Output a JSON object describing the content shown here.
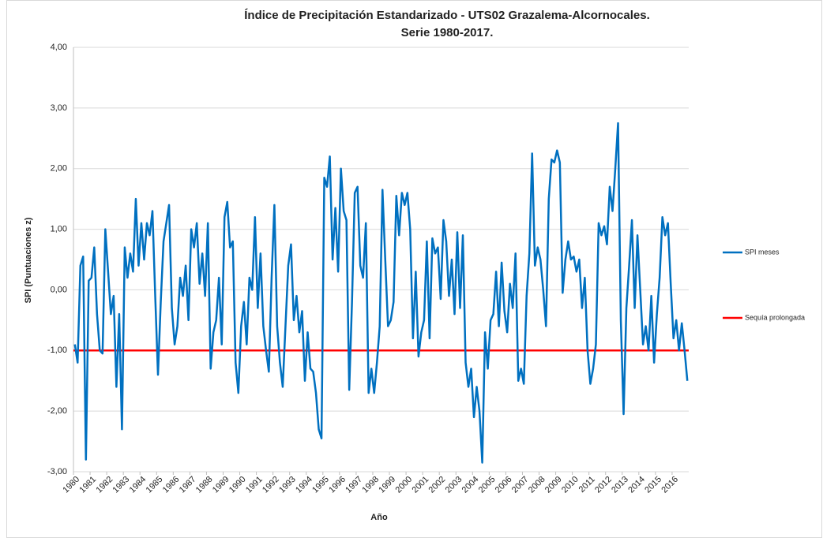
{
  "chart_data": {
    "type": "line",
    "title": [
      "Índice de Precipitación Estandarizado - UTS02 Grazalema-Alcornocales.",
      "Serie 1980-2017."
    ],
    "xlabel": "Año",
    "ylabel": "SPI (Puntuaciones z)",
    "categories": [
      "1980",
      null,
      null,
      null,
      null,
      null,
      "1981",
      null,
      null,
      null,
      null,
      null,
      "1982",
      null,
      null,
      null,
      null,
      null,
      "1983",
      null,
      null,
      null,
      null,
      null,
      "1984",
      null,
      null,
      null,
      null,
      null,
      "1985",
      null,
      null,
      null,
      null,
      null,
      "1986",
      null,
      null,
      null,
      null,
      null,
      "1987",
      null,
      null,
      null,
      null,
      null,
      "1988",
      null,
      null,
      null,
      null,
      null,
      "1989",
      null,
      null,
      null,
      null,
      null,
      "1990",
      null,
      null,
      null,
      null,
      null,
      "1991",
      null,
      null,
      null,
      null,
      null,
      "1992",
      null,
      null,
      null,
      null,
      null,
      "1993",
      null,
      null,
      null,
      null,
      null,
      "1994",
      null,
      null,
      null,
      null,
      null,
      "1995",
      null,
      null,
      null,
      null,
      null,
      "1996",
      null,
      null,
      null,
      null,
      null,
      "1997",
      null,
      null,
      null,
      null,
      null,
      "1998",
      null,
      null,
      null,
      null,
      null,
      "1999",
      null,
      null,
      null,
      null,
      null,
      "2000",
      null,
      null,
      null,
      null,
      null,
      "2001",
      null,
      null,
      null,
      null,
      null,
      "2002",
      null,
      null,
      null,
      null,
      null,
      "2003",
      null,
      null,
      null,
      null,
      null,
      "2004",
      null,
      null,
      null,
      null,
      null,
      "2005",
      null,
      null,
      null,
      null,
      null,
      "2006",
      null,
      null,
      null,
      null,
      null,
      "2007",
      null,
      null,
      null,
      null,
      null,
      "2008",
      null,
      null,
      null,
      null,
      null,
      "2009",
      null,
      null,
      null,
      null,
      null,
      "2010",
      null,
      null,
      null,
      null,
      null,
      "2011",
      null,
      null,
      null,
      null,
      null,
      "2012",
      null,
      null,
      null,
      null,
      null,
      "2013",
      null,
      null,
      null,
      null,
      null,
      "2014",
      null,
      null,
      null,
      null,
      null,
      "2015",
      null,
      null,
      null,
      null,
      null,
      "2016",
      null,
      null,
      null,
      null,
      null
    ],
    "series": [
      {
        "name": "SPI  meses",
        "color": "#0070c0",
        "values": [
          -0.9,
          -1.2,
          0.4,
          0.55,
          -2.8,
          0.15,
          0.2,
          0.7,
          -0.4,
          -1.0,
          -1.05,
          1.0,
          0.3,
          -0.4,
          -0.1,
          -1.6,
          -0.4,
          -2.3,
          0.7,
          0.2,
          0.6,
          0.3,
          1.5,
          0.4,
          1.1,
          0.5,
          1.1,
          0.9,
          1.3,
          -0.1,
          -1.4,
          -0.2,
          0.8,
          1.1,
          1.4,
          -0.3,
          -0.9,
          -0.6,
          0.2,
          -0.1,
          0.4,
          -0.5,
          1.0,
          0.7,
          1.1,
          0.1,
          0.6,
          -0.1,
          1.1,
          -1.3,
          -0.7,
          -0.5,
          0.2,
          -0.9,
          1.2,
          1.45,
          0.7,
          0.8,
          -1.2,
          -1.7,
          -0.6,
          -0.2,
          -0.9,
          0.2,
          0.0,
          1.2,
          -0.3,
          0.6,
          -0.6,
          -1.0,
          -1.35,
          0.2,
          1.4,
          -0.6,
          -1.2,
          -1.6,
          -0.6,
          0.4,
          0.75,
          -0.5,
          -0.1,
          -0.7,
          -0.35,
          -1.5,
          -0.7,
          -1.3,
          -1.35,
          -1.7,
          -2.3,
          -2.45,
          1.85,
          1.7,
          2.2,
          0.5,
          1.35,
          0.3,
          2.0,
          1.3,
          1.15,
          -1.65,
          -0.2,
          1.6,
          1.7,
          0.4,
          0.2,
          1.1,
          -1.7,
          -1.3,
          -1.7,
          -1.2,
          -0.6,
          1.65,
          0.5,
          -0.6,
          -0.5,
          -0.2,
          1.55,
          0.9,
          1.6,
          1.4,
          1.6,
          1.0,
          -0.8,
          0.3,
          -1.1,
          -0.7,
          -0.5,
          0.8,
          -0.8,
          0.85,
          0.6,
          0.7,
          -0.15,
          1.15,
          0.8,
          -0.1,
          0.5,
          -0.4,
          0.95,
          -0.3,
          0.9,
          -1.2,
          -1.6,
          -1.3,
          -2.1,
          -1.6,
          -2.0,
          -2.85,
          -0.7,
          -1.3,
          -0.5,
          -0.4,
          0.3,
          -0.6,
          0.45,
          -0.35,
          -0.7,
          0.1,
          -0.3,
          0.6,
          -1.5,
          -1.3,
          -1.55,
          -0.1,
          0.6,
          2.25,
          0.4,
          0.7,
          0.5,
          0.0,
          -0.6,
          1.5,
          2.15,
          2.1,
          2.3,
          2.1,
          -0.05,
          0.5,
          0.8,
          0.5,
          0.55,
          0.3,
          0.5,
          -0.3,
          0.2,
          -1.0,
          -1.55,
          -1.3,
          -0.9,
          1.1,
          0.9,
          1.05,
          0.75,
          1.7,
          1.3,
          2.0,
          2.75,
          -0.5,
          -2.05,
          -0.3,
          0.4,
          1.15,
          -0.3,
          0.9,
          0.0,
          -0.9,
          -0.6,
          -1.0,
          -0.1,
          -1.2,
          -0.4,
          0.2,
          1.2,
          0.9,
          1.1,
          0.1,
          -0.8,
          -0.5,
          -1.0,
          -0.55,
          -1.0,
          -1.5
        ]
      }
    ],
    "reference_line": {
      "name": "Sequía prolongada",
      "value": -1,
      "color": "#ff0000"
    },
    "ylim": [
      -3,
      4
    ],
    "yticks": [
      {
        "value": -3,
        "label": "-3,00"
      },
      {
        "value": -2,
        "label": "-2,00"
      },
      {
        "value": -1,
        "label": "-1,00"
      },
      {
        "value": 0,
        "label": "0,00"
      },
      {
        "value": 1,
        "label": "1,00"
      },
      {
        "value": 2,
        "label": "2,00"
      },
      {
        "value": 3,
        "label": "3,00"
      },
      {
        "value": 4,
        "label": "4,00"
      }
    ],
    "grid": true,
    "legend": "right"
  }
}
